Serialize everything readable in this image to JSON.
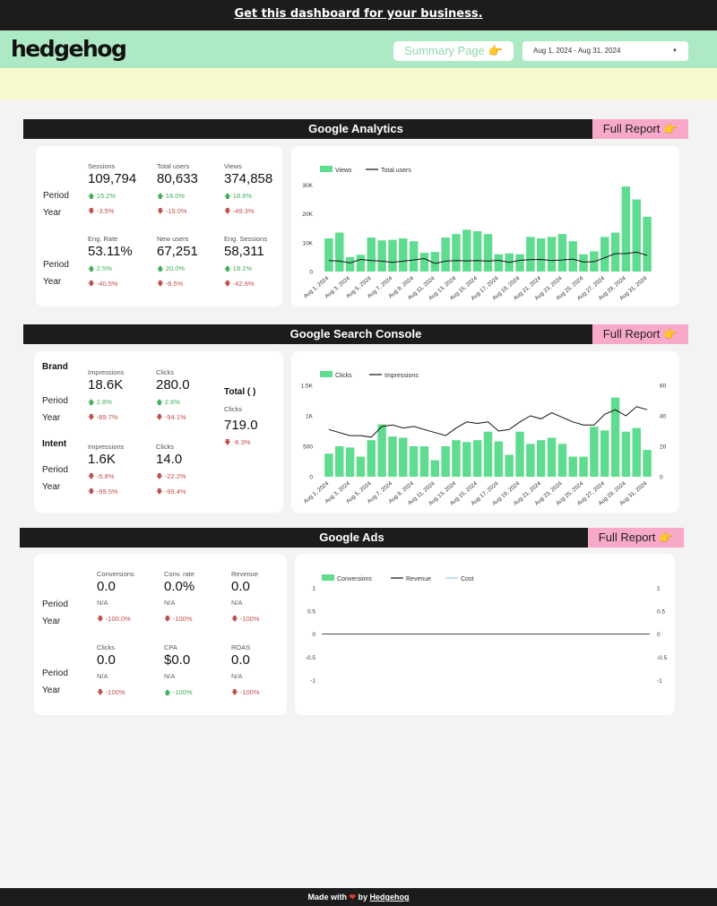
{
  "top_banner": {
    "text": "Get this dashboard for your business."
  },
  "header": {
    "logo": "hedgehog",
    "summary_button": "Summary Page 👉",
    "date_range": "Aug 1, 2024 - Aug 31, 2024"
  },
  "row_labels": {
    "period": "Period",
    "year": "Year"
  },
  "na": "N/A",
  "analytics": {
    "title": "Google Analytics",
    "full_report": "Full Report 👉",
    "metrics": [
      {
        "label": "Sessions",
        "value": "109,794",
        "period": "15.2%",
        "period_dir": "up",
        "year": "-3.5%",
        "year_dir": "down"
      },
      {
        "label": "Total users",
        "value": "80,633",
        "period": "18.0%",
        "period_dir": "up",
        "year": "-15.0%",
        "year_dir": "down"
      },
      {
        "label": "Views",
        "value": "374,858",
        "period": "18.6%",
        "period_dir": "up",
        "year": "-49.3%",
        "year_dir": "down"
      },
      {
        "label": "Eng. Rate",
        "value": "53.11%",
        "period": "2.5%",
        "period_dir": "up",
        "year": "-40.5%",
        "year_dir": "down"
      },
      {
        "label": "New users",
        "value": "67,251",
        "period": "20.0%",
        "period_dir": "up",
        "year": "-8.5%",
        "year_dir": "down"
      },
      {
        "label": "Eng. Sessions",
        "value": "58,311",
        "period": "18.1%",
        "period_dir": "up",
        "year": "-42.6%",
        "year_dir": "down"
      }
    ]
  },
  "search_console": {
    "title": "Google Search Console",
    "full_report": "Full Report 👉",
    "brand_label": "Brand",
    "intent_label": "Intent",
    "total_label": "Total ( )",
    "brand": [
      {
        "label": "Impressions",
        "value": "18.6K",
        "period": "2.8%",
        "period_dir": "up",
        "year": "-89.7%",
        "year_dir": "down"
      },
      {
        "label": "Clicks",
        "value": "280.0",
        "period": "2.6%",
        "period_dir": "up",
        "year": "-94.1%",
        "year_dir": "down"
      }
    ],
    "intent": [
      {
        "label": "Impressions",
        "value": "1.6K",
        "period": "-5.8%",
        "period_dir": "down",
        "year": "-99.5%",
        "year_dir": "down"
      },
      {
        "label": "Clicks",
        "value": "14.0",
        "period": "-22.2%",
        "period_dir": "down",
        "year": "-99.4%",
        "year_dir": "down"
      }
    ],
    "total": {
      "label": "Clicks",
      "value": "719.0",
      "change": "-8.3%",
      "change_dir": "down"
    }
  },
  "ads": {
    "title": "Google Ads",
    "full_report": "Full Report 👉",
    "metrics": [
      {
        "label": "Conversions",
        "value": "0.0",
        "na": true,
        "year": "-100.0%",
        "year_dir": "down"
      },
      {
        "label": "Conv. rate",
        "value": "0.0%",
        "na": true,
        "year": "-100%",
        "year_dir": "down"
      },
      {
        "label": "Revenue",
        "value": "0.0",
        "na": true,
        "year": "-100%",
        "year_dir": "down"
      },
      {
        "label": "Clicks",
        "value": "0.0",
        "na": true,
        "year": "-100%",
        "year_dir": "down"
      },
      {
        "label": "CPA",
        "value": "$0.0",
        "na": true,
        "year": "-100%",
        "year_dir": "up"
      },
      {
        "label": "ROAS",
        "value": "0.0",
        "na": true,
        "year": "-100%",
        "year_dir": "down"
      }
    ]
  },
  "chart_data": [
    {
      "type": "bar",
      "x": [
        "Aug 1, 2024",
        "Aug 2, 2024",
        "Aug 3, 2024",
        "Aug 4, 2024",
        "Aug 5, 2024",
        "Aug 6, 2024",
        "Aug 7, 2024",
        "Aug 8, 2024",
        "Aug 9, 2024",
        "Aug 10, 2024",
        "Aug 11, 2024",
        "Aug 12, 2024",
        "Aug 13, 2024",
        "Aug 14, 2024",
        "Aug 15, 2024",
        "Aug 16, 2024",
        "Aug 17, 2024",
        "Aug 18, 2024",
        "Aug 19, 2024",
        "Aug 20, 2024",
        "Aug 21, 2024",
        "Aug 22, 2024",
        "Aug 23, 2024",
        "Aug 24, 2024",
        "Aug 25, 2024",
        "Aug 26, 2024",
        "Aug 27, 2024",
        "Aug 28, 2024",
        "Aug 29, 2024",
        "Aug 30, 2024",
        "Aug 31, 2024"
      ],
      "tick_labels": [
        "Aug 1, 2024",
        "Aug 3, 2024",
        "Aug 5, 2024",
        "Aug 7, 2024",
        "Aug 9, 2024",
        "Aug 11, 2024",
        "Aug 13, 2024",
        "Aug 15, 2024",
        "Aug 17, 2024",
        "Aug 19, 2024",
        "Aug 21, 2024",
        "Aug 23, 2024",
        "Aug 25, 2024",
        "Aug 27, 2024",
        "Aug 29, 2024",
        "Aug 31, 2024"
      ],
      "series": [
        {
          "name": "Views",
          "kind": "bar",
          "color": "#5fdc8f",
          "values": [
            11500,
            13500,
            5000,
            5800,
            11800,
            10800,
            11000,
            11500,
            10500,
            6500,
            6800,
            11800,
            13000,
            14500,
            14000,
            13000,
            6000,
            6300,
            6000,
            12000,
            11500,
            12000,
            13000,
            10500,
            6000,
            7000,
            12000,
            13500,
            29500,
            25000,
            19000
          ]
        },
        {
          "name": "Total users",
          "kind": "line",
          "color": "#111111",
          "values": [
            3800,
            3600,
            3000,
            4200,
            3800,
            3600,
            3200,
            3600,
            4000,
            4500,
            2800,
            3600,
            3800,
            3700,
            3800,
            3600,
            3900,
            3200,
            3900,
            4100,
            4200,
            3800,
            4000,
            4300,
            3300,
            3400,
            4800,
            6200,
            6200,
            6700,
            5600
          ]
        }
      ],
      "ylim": [
        0,
        32000
      ],
      "y_ticks": [
        "0",
        "10K",
        "20K",
        "30K"
      ],
      "y_tick_values": [
        0,
        10000,
        20000,
        30000
      ],
      "legend": "top-left"
    },
    {
      "type": "bar",
      "x": [
        "Aug 1, 2024",
        "Aug 2, 2024",
        "Aug 3, 2024",
        "Aug 4, 2024",
        "Aug 5, 2024",
        "Aug 6, 2024",
        "Aug 7, 2024",
        "Aug 8, 2024",
        "Aug 9, 2024",
        "Aug 10, 2024",
        "Aug 11, 2024",
        "Aug 12, 2024",
        "Aug 13, 2024",
        "Aug 14, 2024",
        "Aug 15, 2024",
        "Aug 16, 2024",
        "Aug 17, 2024",
        "Aug 18, 2024",
        "Aug 19, 2024",
        "Aug 20, 2024",
        "Aug 21, 2024",
        "Aug 22, 2024",
        "Aug 23, 2024",
        "Aug 24, 2024",
        "Aug 25, 2024",
        "Aug 26, 2024",
        "Aug 27, 2024",
        "Aug 28, 2024",
        "Aug 29, 2024",
        "Aug 30, 2024",
        "Aug 31, 2024"
      ],
      "tick_labels": [
        "Aug 1, 2024",
        "Aug 3, 2024",
        "Aug 5, 2024",
        "Aug 7, 2024",
        "Aug 9, 2024",
        "Aug 11, 2024",
        "Aug 13, 2024",
        "Aug 15, 2024",
        "Aug 17, 2024",
        "Aug 19, 2024",
        "Aug 21, 2024",
        "Aug 23, 2024",
        "Aug 25, 2024",
        "Aug 27, 2024",
        "Aug 29, 2024",
        "Aug 31, 2024"
      ],
      "series": [
        {
          "name": "Clicks",
          "kind": "bar",
          "axis": "left",
          "color": "#5fdc8f",
          "values": [
            380,
            500,
            480,
            330,
            600,
            860,
            660,
            640,
            500,
            500,
            270,
            500,
            600,
            570,
            600,
            740,
            580,
            360,
            740,
            540,
            600,
            640,
            540,
            330,
            330,
            820,
            760,
            1300,
            740,
            800,
            440
          ]
        },
        {
          "name": "Impressions",
          "kind": "line",
          "axis": "right",
          "color": "#111111",
          "values": [
            31,
            29,
            27,
            27,
            26,
            33,
            34,
            32,
            33,
            31,
            29,
            27,
            32,
            36,
            35,
            36,
            30,
            31,
            36,
            40,
            38,
            42,
            39,
            36,
            34,
            34,
            41,
            44,
            40,
            46,
            44
          ]
        }
      ],
      "ylim": [
        0,
        1500
      ],
      "y_ticks": [
        "0",
        "500",
        "1K",
        "1.5K"
      ],
      "y_tick_values": [
        0,
        500,
        1000,
        1500
      ],
      "y2lim": [
        0,
        60
      ],
      "y2_ticks": [
        "0",
        "20",
        "40",
        "60"
      ],
      "y2_tick_values": [
        0,
        20,
        40,
        60
      ],
      "legend": "top-left"
    },
    {
      "type": "line",
      "series": [
        {
          "name": "Conversions",
          "kind": "bar",
          "color": "#5fdc8f",
          "values": []
        },
        {
          "name": "Revenue",
          "kind": "line",
          "color": "#111111",
          "values": []
        },
        {
          "name": "Cost",
          "kind": "line",
          "color": "#8dd3e8",
          "values": []
        }
      ],
      "ylim": [
        -1,
        1
      ],
      "y_ticks": [
        "1",
        "0.5",
        "0",
        "-0.5",
        "-1"
      ],
      "y_tick_values": [
        1,
        0.5,
        0,
        -0.5,
        -1
      ],
      "y2_ticks": [
        "1",
        "0.5",
        "0",
        "-0.5",
        "-1"
      ],
      "y2_tick_values": [
        1,
        0.5,
        0,
        -0.5,
        -1
      ],
      "legend": "top-left"
    }
  ]
}
